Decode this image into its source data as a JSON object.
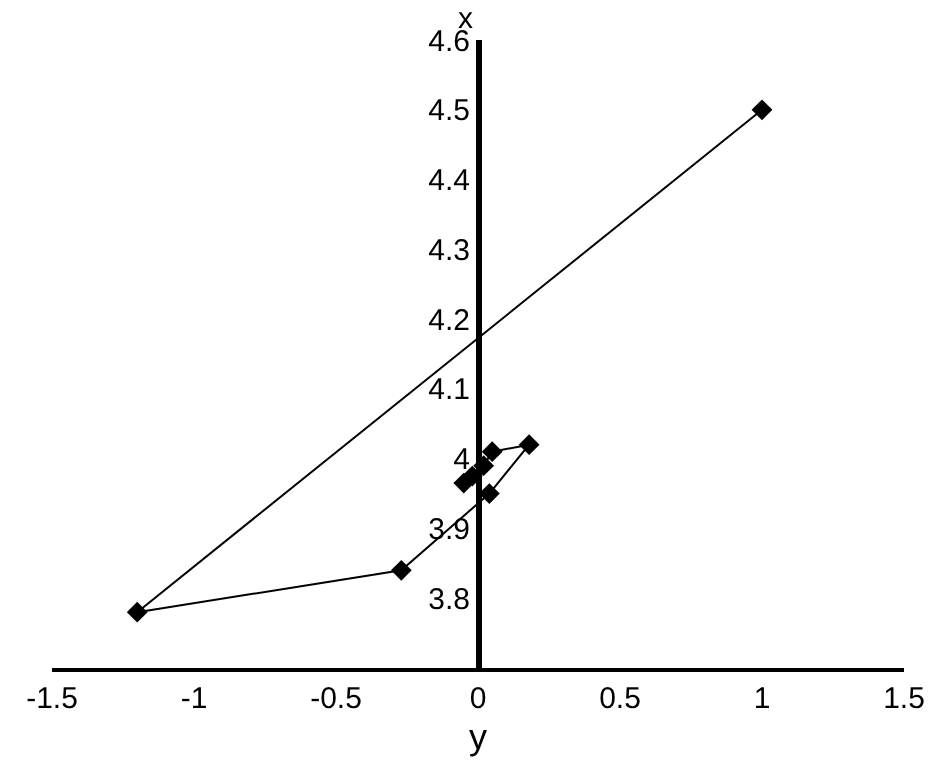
{
  "chart_data": {
    "type": "line",
    "xlabel": "y",
    "ylabel": "x",
    "marker": "diamond",
    "line_style": "solid",
    "x": [
      1.0,
      -1.2,
      -0.27,
      0.04,
      0.18,
      0.05,
      0.02,
      -0.02,
      -0.05
    ],
    "series": [
      {
        "color": "#000000",
        "values": [
          4.5,
          3.78,
          3.84,
          3.95,
          4.02,
          4.01,
          3.99,
          3.975,
          3.965
        ]
      }
    ],
    "xlim": [
      -1.5,
      1.5
    ],
    "xticks": [
      -1.5,
      -1,
      -0.5,
      0,
      0.5,
      1,
      1.5
    ],
    "ylim": [
      3.7,
      4.6
    ],
    "yticks": [
      3.8,
      3.9,
      4,
      4.1,
      4.2,
      4.3,
      4.4,
      4.5,
      4.6
    ]
  }
}
